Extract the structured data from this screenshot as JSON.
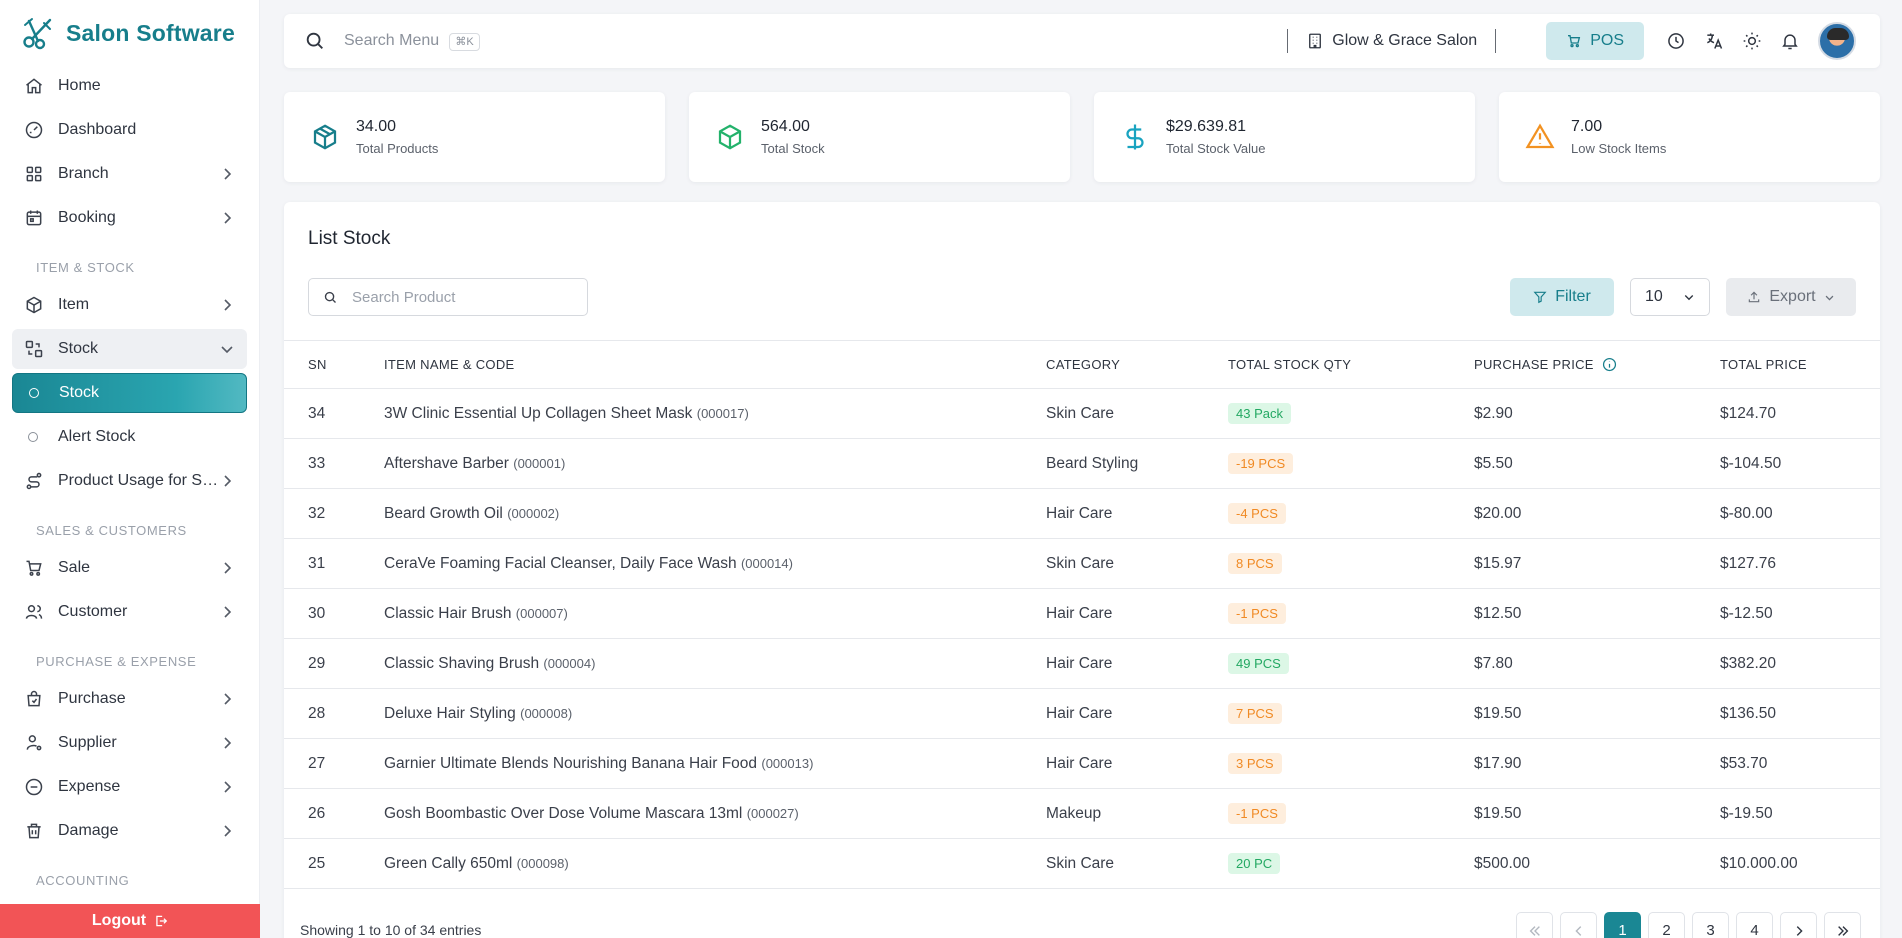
{
  "brand": {
    "name": "Salon Software",
    "color": "#177e8b"
  },
  "sidebar": {
    "items_top": [
      {
        "label": "Home",
        "icon": "home-icon"
      },
      {
        "label": "Dashboard",
        "icon": "gauge-icon"
      },
      {
        "label": "Branch",
        "icon": "grid-icon"
      },
      {
        "label": "Booking",
        "icon": "calendar-icon"
      }
    ],
    "section_item_stock": "ITEM & STOCK",
    "item_label": "Item",
    "stock_label": "Stock",
    "stock_sub": [
      "Stock",
      "Alert Stock"
    ],
    "usage_label": "Product Usage for Se...",
    "section_sales": "SALES & CUSTOMERS",
    "sale_label": "Sale",
    "customer_label": "Customer",
    "section_purchase": "PURCHASE & EXPENSE",
    "purchase_label": "Purchase",
    "supplier_label": "Supplier",
    "expense_label": "Expense",
    "damage_label": "Damage",
    "section_accounting": "ACCOUNTING",
    "logout_label": "Logout"
  },
  "topbar": {
    "search_placeholder": "Search Menu",
    "shortcut": "⌘K",
    "branch_name": "Glow & Grace Salon",
    "pos_label": "POS"
  },
  "stats": [
    {
      "value": "34.00",
      "caption": "Total Products",
      "color": "#177e8b",
      "icon": "box-icon"
    },
    {
      "value": "564.00",
      "caption": "Total Stock",
      "color": "#23b26b",
      "icon": "box-icon"
    },
    {
      "value": "$29.639.81",
      "caption": "Total Stock Value",
      "color": "#19a3c0",
      "icon": "dollar-icon"
    },
    {
      "value": "7.00",
      "caption": "Low Stock Items",
      "color": "#f29222",
      "icon": "warning-icon"
    }
  ],
  "panel": {
    "title": "List Stock",
    "search_placeholder": "Search Product",
    "filter_label": "Filter",
    "per_page": "10",
    "export_label": "Export"
  },
  "table": {
    "headers": [
      "SN",
      "ITEM NAME & CODE",
      "CATEGORY",
      "TOTAL STOCK QTY",
      "PURCHASE PRICE",
      "TOTAL PRICE"
    ],
    "rows": [
      {
        "sn": "34",
        "name": "3W Clinic Essential Up Collagen Sheet Mask",
        "code": "(000017)",
        "category": "Skin Care",
        "qty": "43 Pack",
        "status": "green",
        "price": "$2.90",
        "total": "$124.70"
      },
      {
        "sn": "33",
        "name": "Aftershave Barber",
        "code": "(000001)",
        "category": "Beard Styling",
        "qty": "-19 PCS",
        "status": "orange",
        "price": "$5.50",
        "total": "$-104.50"
      },
      {
        "sn": "32",
        "name": "Beard Growth Oil",
        "code": "(000002)",
        "category": "Hair Care",
        "qty": "-4 PCS",
        "status": "orange",
        "price": "$20.00",
        "total": "$-80.00"
      },
      {
        "sn": "31",
        "name": "CeraVe Foaming Facial Cleanser, Daily Face Wash",
        "code": "(000014)",
        "category": "Skin Care",
        "qty": "8 PCS",
        "status": "orange",
        "price": "$15.97",
        "total": "$127.76"
      },
      {
        "sn": "30",
        "name": "Classic Hair Brush",
        "code": "(000007)",
        "category": "Hair Care",
        "qty": "-1 PCS",
        "status": "orange",
        "price": "$12.50",
        "total": "$-12.50"
      },
      {
        "sn": "29",
        "name": "Classic Shaving Brush",
        "code": "(000004)",
        "category": "Hair Care",
        "qty": "49 PCS",
        "status": "green",
        "price": "$7.80",
        "total": "$382.20"
      },
      {
        "sn": "28",
        "name": "Deluxe Hair Styling",
        "code": "(000008)",
        "category": "Hair Care",
        "qty": "7 PCS",
        "status": "orange",
        "price": "$19.50",
        "total": "$136.50"
      },
      {
        "sn": "27",
        "name": "Garnier Ultimate Blends Nourishing Banana Hair Food",
        "code": "(000013)",
        "category": "Hair Care",
        "qty": "3 PCS",
        "status": "orange",
        "price": "$17.90",
        "total": "$53.70"
      },
      {
        "sn": "26",
        "name": "Gosh Boombastic Over Dose Volume Mascara 13ml",
        "code": "(000027)",
        "category": "Makeup",
        "qty": "-1 PCS",
        "status": "orange",
        "price": "$19.50",
        "total": "$-19.50"
      },
      {
        "sn": "25",
        "name": "Green Cally 650ml",
        "code": "(000098)",
        "category": "Skin Care",
        "qty": "20 PC",
        "status": "green",
        "price": "$500.00",
        "total": "$10.000.00"
      }
    ]
  },
  "footer": {
    "showing": "Showing 1 to 10 of 34 entries",
    "pages": [
      "1",
      "2",
      "3",
      "4"
    ],
    "current_page": "1"
  }
}
